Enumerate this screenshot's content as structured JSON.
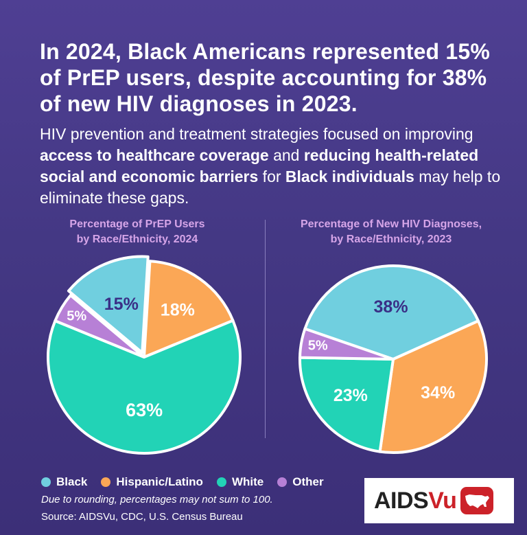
{
  "headline": "In 2024, Black Americans represented 15% of PrEP users, despite accounting for 38% of new HIV diagnoses in 2023.",
  "subtext": {
    "p1": "HIV prevention and treatment strategies focused on improving ",
    "b1": "access to healthcare coverage",
    "p2": " and ",
    "b2": "reducing health-related social and economic barriers",
    "p3": " for ",
    "b3": "Black individuals",
    "p4": " may help to eliminate these gaps."
  },
  "colors": {
    "Black": "#70cfdf",
    "Hispanic/Latino": "#fba756",
    "White": "#22d3b6",
    "Other": "#b780d6",
    "stroke": "#ffffff",
    "label_dark": "#3a2f86",
    "label_light": "#ffffff"
  },
  "chart_data": [
    {
      "type": "pie",
      "title_line1": "Percentage of PrEP Users",
      "title_line2": "by Race/Ethnicity, 2024",
      "slices": [
        {
          "name": "Black",
          "value": 15,
          "label": "15%"
        },
        {
          "name": "Hispanic/Latino",
          "value": 18,
          "label": "18%"
        },
        {
          "name": "White",
          "value": 63,
          "label": "63%"
        },
        {
          "name": "Other",
          "value": 5,
          "label": "5%"
        }
      ]
    },
    {
      "type": "pie",
      "title_line1": "Percentage of New HIV Diagnoses,",
      "title_line2": "by Race/Ethnicity, 2023",
      "slices": [
        {
          "name": "Black",
          "value": 38,
          "label": "38%"
        },
        {
          "name": "Hispanic/Latino",
          "value": 34,
          "label": "34%"
        },
        {
          "name": "White",
          "value": 23,
          "label": "23%"
        },
        {
          "name": "Other",
          "value": 5,
          "label": "5%"
        }
      ]
    }
  ],
  "legend": [
    "Black",
    "Hispanic/Latino",
    "White",
    "Other"
  ],
  "note": "Due to rounding, percentages may not sum to 100.",
  "source": "Source: AIDSVu, CDC, U.S. Census Bureau",
  "logo": {
    "part1": "AIDS",
    "part2": "Vu",
    "map_icon": "us-map-icon"
  }
}
